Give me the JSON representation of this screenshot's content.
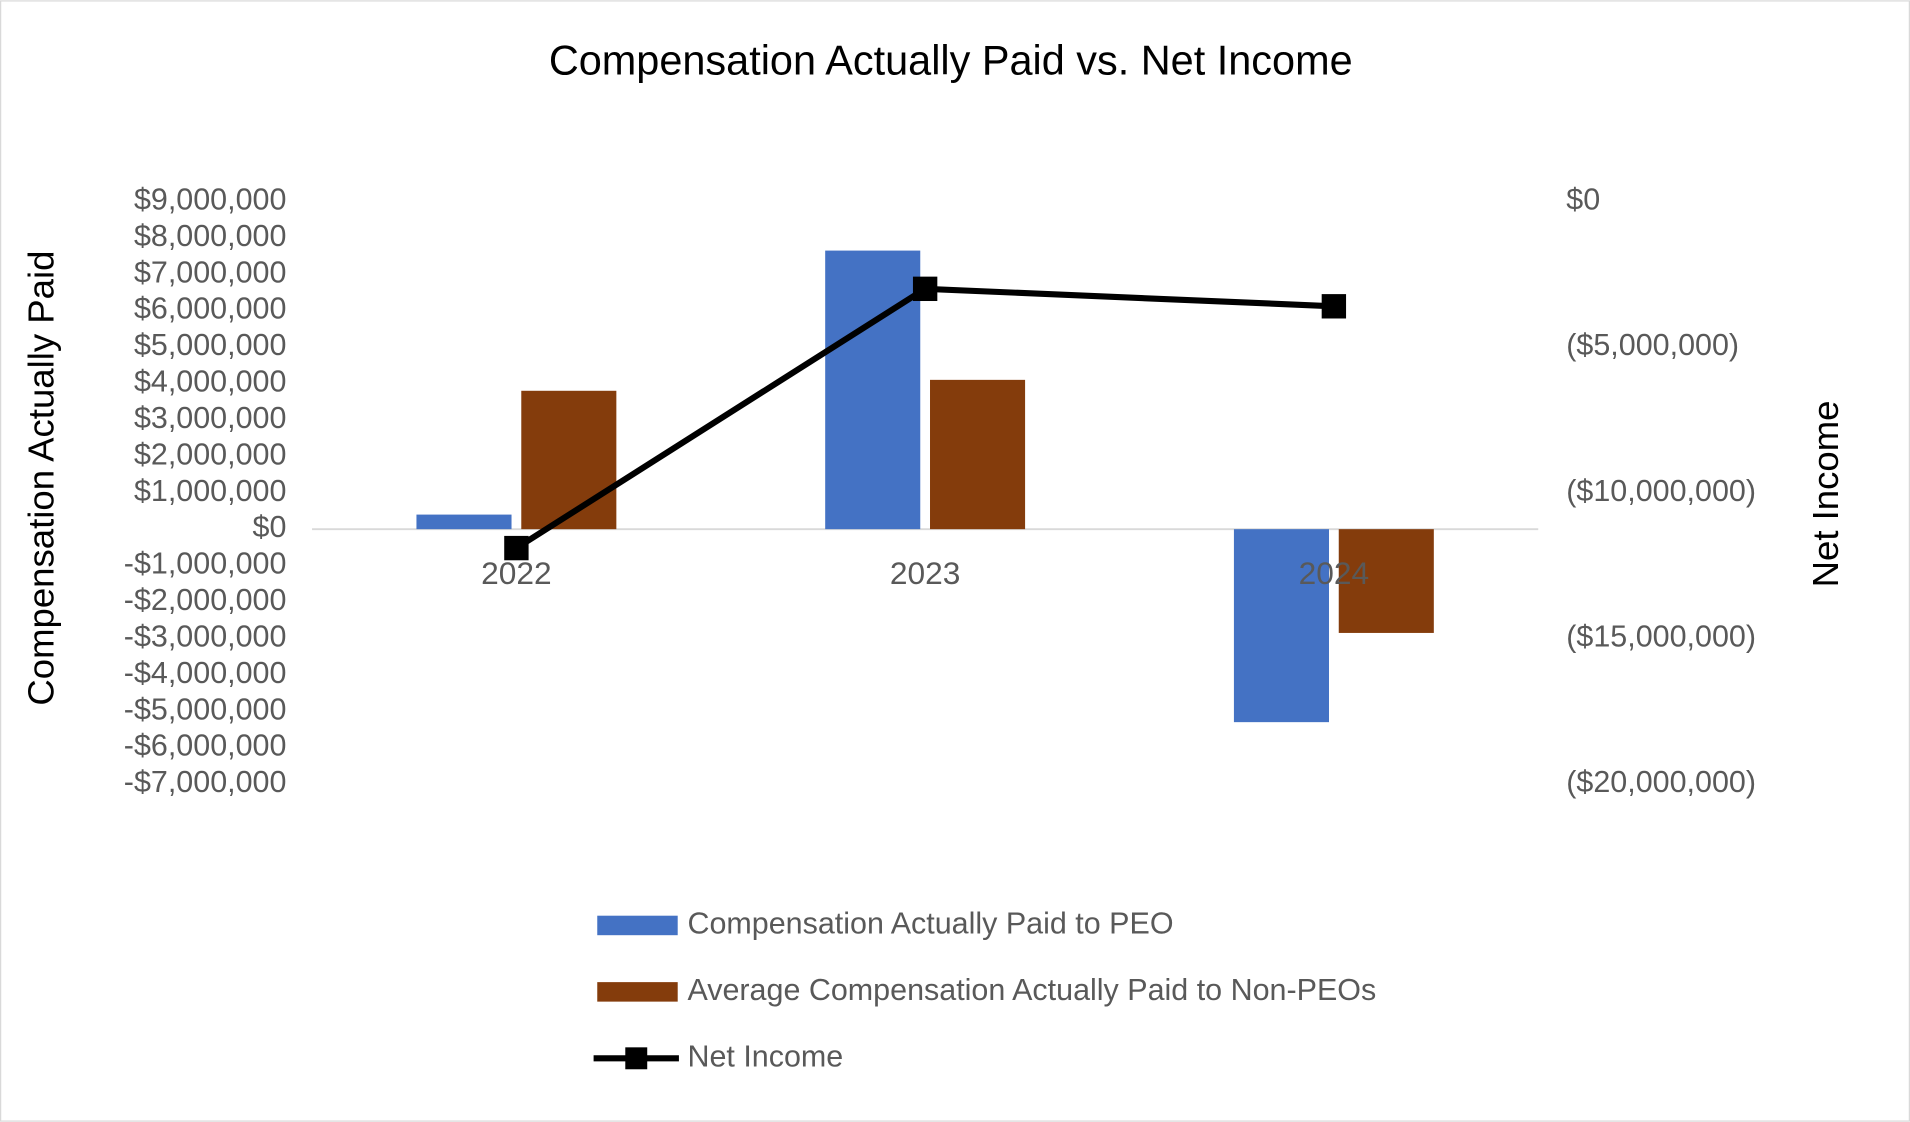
{
  "chart_data": {
    "type": "bar",
    "title": "Compensation Actually Paid vs. Net Income",
    "categories": [
      "2022",
      "2023",
      "2024"
    ],
    "series": [
      {
        "name": "Compensation Actually Paid to PEO",
        "color": "#4472c4",
        "values": [
          400000,
          7650000,
          -5300000
        ]
      },
      {
        "name": "Average Compensation Actually Paid to Non-PEOs",
        "color": "#843c0c",
        "values": [
          3800000,
          4100000,
          -2850000
        ]
      },
      {
        "name": "Net Income",
        "color": "#000000",
        "type": "line",
        "axis": "y2",
        "values": [
          -11900000,
          -3000000,
          -3600000
        ]
      }
    ],
    "ylabel": "Compensation Actually Paid",
    "y2label": "Net Income",
    "ylim": [
      -7000000,
      9000000
    ],
    "yticks": [
      {
        "value": -7000000,
        "label": "-$7,000,000"
      },
      {
        "value": -6000000,
        "label": "-$6,000,000"
      },
      {
        "value": -5000000,
        "label": "-$5,000,000"
      },
      {
        "value": -4000000,
        "label": "-$4,000,000"
      },
      {
        "value": -3000000,
        "label": "-$3,000,000"
      },
      {
        "value": -2000000,
        "label": "-$2,000,000"
      },
      {
        "value": -1000000,
        "label": "-$1,000,000"
      },
      {
        "value": 0,
        "label": "$0"
      },
      {
        "value": 1000000,
        "label": "$1,000,000"
      },
      {
        "value": 2000000,
        "label": "$2,000,000"
      },
      {
        "value": 3000000,
        "label": "$3,000,000"
      },
      {
        "value": 4000000,
        "label": "$4,000,000"
      },
      {
        "value": 5000000,
        "label": "$5,000,000"
      },
      {
        "value": 6000000,
        "label": "$6,000,000"
      },
      {
        "value": 7000000,
        "label": "$7,000,000"
      },
      {
        "value": 8000000,
        "label": "$8,000,000"
      },
      {
        "value": 9000000,
        "label": "$9,000,000"
      }
    ],
    "y2lim": [
      -20000000,
      0
    ],
    "y2ticks": [
      {
        "value": -20000000,
        "label": "($20,000,000)"
      },
      {
        "value": -15000000,
        "label": "($15,000,000)"
      },
      {
        "value": -10000000,
        "label": "($10,000,000)"
      },
      {
        "value": -5000000,
        "label": "($5,000,000)"
      },
      {
        "value": 0,
        "label": "$0"
      }
    ],
    "legend": "bottom"
  }
}
